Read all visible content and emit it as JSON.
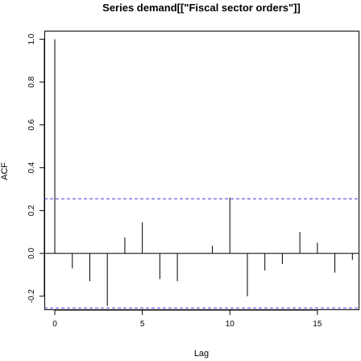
{
  "chart_data": {
    "type": "bar",
    "title": "Series  demand[[\"Fiscal sector orders\"]]",
    "xlabel": "Lag",
    "ylabel": "ACF",
    "xlim": [
      -0.6,
      17.4
    ],
    "ylim": [
      -0.265,
      1.04
    ],
    "x_ticks": [
      0,
      5,
      10,
      15
    ],
    "x_tick_labels": [
      "0",
      "5",
      "10",
      "15"
    ],
    "y_ticks": [
      -0.2,
      0.0,
      0.2,
      0.4,
      0.6,
      0.8,
      1.0
    ],
    "y_tick_labels": [
      "-0.2",
      "0.0",
      "0.2",
      "0.4",
      "0.6",
      "0.8",
      "1.0"
    ],
    "lags": [
      0,
      1,
      2,
      3,
      4,
      5,
      6,
      7,
      8,
      9,
      10,
      11,
      12,
      13,
      14,
      15,
      16,
      17
    ],
    "values": [
      1.0,
      -0.07,
      -0.13,
      -0.245,
      0.075,
      0.145,
      -0.12,
      -0.13,
      0.0,
      0.035,
      0.26,
      -0.2,
      -0.08,
      -0.05,
      0.1,
      0.05,
      -0.09,
      -0.03
    ],
    "confidence_band": 0.255,
    "grid": false,
    "colors": {
      "bars": "#000000",
      "band": "#3b3bd6",
      "axis": "#000000",
      "zero_line": "#000000"
    }
  }
}
